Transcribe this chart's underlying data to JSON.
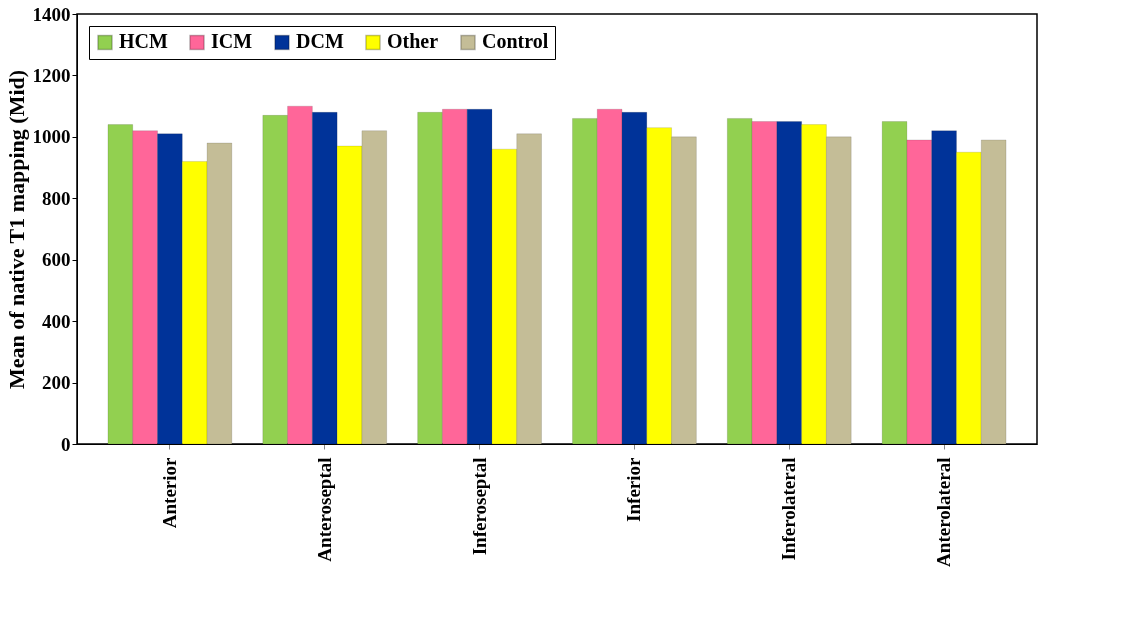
{
  "chart_data": {
    "type": "bar",
    "ylabel": "Mean of native T1 mapping (Mid)",
    "categories": [
      "Anterior",
      "Anteroseptal",
      "Inferoseptal",
      "Inferior",
      "Inferolateral",
      "Anterolateral"
    ],
    "series": [
      {
        "name": "HCM",
        "color": "#92d050",
        "values": [
          1040,
          1070,
          1080,
          1060,
          1060,
          1050
        ]
      },
      {
        "name": "ICM",
        "color": "#ff6699",
        "values": [
          1020,
          1100,
          1090,
          1090,
          1050,
          990
        ]
      },
      {
        "name": "DCM",
        "color": "#003399",
        "values": [
          1010,
          1080,
          1090,
          1080,
          1050,
          1020
        ]
      },
      {
        "name": "Other",
        "color": "#ffff00",
        "values": [
          920,
          970,
          960,
          1030,
          1040,
          950
        ]
      },
      {
        "name": "Control",
        "color": "#c4bd97",
        "values": [
          980,
          1020,
          1010,
          1000,
          1000,
          990
        ]
      }
    ],
    "ylim": [
      0,
      1400
    ],
    "yticks": [
      0,
      200,
      400,
      600,
      800,
      1000,
      1200,
      1400
    ],
    "legend": "top left",
    "grid": false
  }
}
